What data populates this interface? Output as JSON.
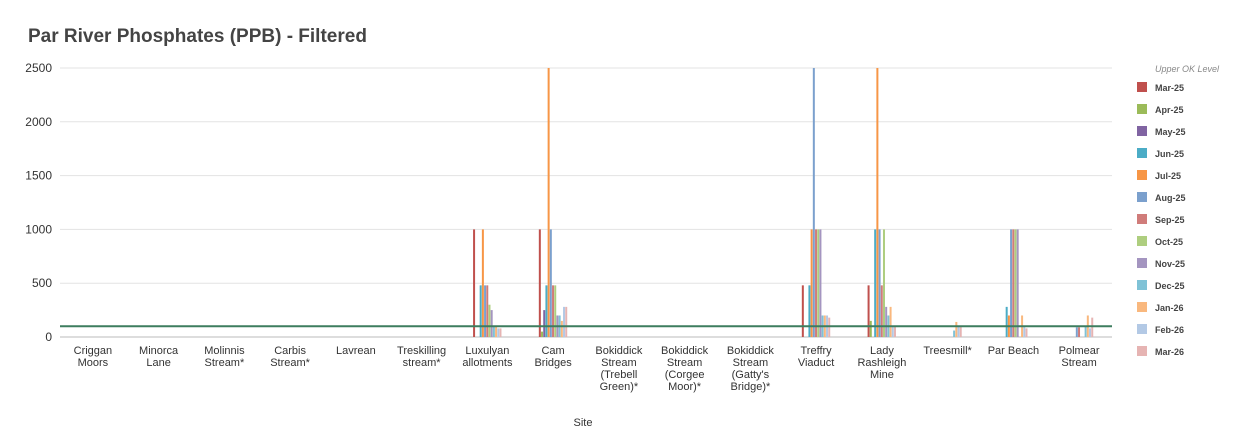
{
  "chart_data": {
    "type": "bar",
    "title": "Par River Phosphates (PPB) - Filtered",
    "xlabel": "Site",
    "ylabel": "",
    "ylim": [
      0,
      2500
    ],
    "yticks": [
      0,
      500,
      1000,
      1500,
      2000,
      2500
    ],
    "grid": true,
    "legend_position": "right",
    "upper_ok_level": 100,
    "upper_ok_label": "Upper OK Level",
    "upper_ok_color": "#3d7d5f",
    "categories": [
      [
        "Criggan",
        "Moors"
      ],
      [
        "Minorca",
        "Lane"
      ],
      [
        "Molinnis",
        "Stream*"
      ],
      [
        "Carbis",
        "Stream*"
      ],
      [
        "Lavrean"
      ],
      [
        "Treskilling",
        "stream*"
      ],
      [
        "Luxulyan",
        "allotments"
      ],
      [
        "Cam",
        "Bridges"
      ],
      [
        "Bokiddick",
        "Stream",
        "(Trebell",
        "Green)*"
      ],
      [
        "Bokiddick",
        "Stream",
        "(Corgee",
        "Moor)*"
      ],
      [
        "Bokiddick",
        "Stream",
        "(Gatty's",
        "Bridge)*"
      ],
      [
        "Treffry",
        "Viaduct"
      ],
      [
        "Lady",
        "Rashleigh",
        "Mine"
      ],
      [
        "Treesmill*"
      ],
      [
        "Par Beach"
      ],
      [
        "Polmear",
        "Stream"
      ]
    ],
    "series": [
      {
        "name": "Mar-25",
        "color": "#c0504d",
        "values": [
          0,
          0,
          0,
          0,
          0,
          0,
          1000,
          1000,
          0,
          0,
          0,
          480,
          480,
          0,
          0,
          0
        ]
      },
      {
        "name": "Apr-25",
        "color": "#9bbb59",
        "values": [
          0,
          0,
          0,
          0,
          0,
          0,
          0,
          50,
          0,
          0,
          0,
          0,
          150,
          0,
          0,
          0
        ]
      },
      {
        "name": "May-25",
        "color": "#8064a2",
        "values": [
          0,
          0,
          0,
          0,
          0,
          0,
          0,
          250,
          0,
          0,
          0,
          0,
          0,
          0,
          0,
          0
        ]
      },
      {
        "name": "Jun-25",
        "color": "#4bacc6",
        "values": [
          0,
          0,
          0,
          0,
          0,
          0,
          480,
          480,
          0,
          0,
          0,
          480,
          1000,
          0,
          280,
          0
        ]
      },
      {
        "name": "Jul-25",
        "color": "#f79646",
        "values": [
          0,
          0,
          0,
          0,
          0,
          0,
          1000,
          2500,
          0,
          0,
          0,
          1000,
          2500,
          0,
          200,
          0
        ]
      },
      {
        "name": "Aug-25",
        "color": "#7ba0cd",
        "values": [
          0,
          0,
          0,
          0,
          0,
          0,
          480,
          1000,
          0,
          0,
          0,
          2500,
          1000,
          0,
          1000,
          90
        ]
      },
      {
        "name": "Sep-25",
        "color": "#d07c7a",
        "values": [
          0,
          0,
          0,
          0,
          0,
          0,
          480,
          480,
          0,
          0,
          0,
          1000,
          480,
          0,
          1000,
          90
        ]
      },
      {
        "name": "Oct-25",
        "color": "#aece7f",
        "values": [
          0,
          0,
          0,
          0,
          0,
          0,
          300,
          480,
          0,
          0,
          0,
          1000,
          1000,
          0,
          1000,
          0
        ]
      },
      {
        "name": "Nov-25",
        "color": "#a495c0",
        "values": [
          0,
          0,
          0,
          0,
          0,
          0,
          250,
          200,
          0,
          0,
          0,
          1000,
          280,
          0,
          1000,
          0
        ]
      },
      {
        "name": "Dec-25",
        "color": "#7fc2d6",
        "values": [
          0,
          0,
          0,
          0,
          0,
          0,
          100,
          200,
          0,
          0,
          0,
          200,
          200,
          60,
          0,
          100
        ]
      },
      {
        "name": "Jan-26",
        "color": "#f9b87e",
        "values": [
          0,
          0,
          0,
          0,
          0,
          0,
          100,
          150,
          0,
          0,
          0,
          200,
          280,
          140,
          200,
          200
        ]
      },
      {
        "name": "Feb-26",
        "color": "#b3c9e5",
        "values": [
          0,
          0,
          0,
          0,
          0,
          0,
          80,
          280,
          0,
          0,
          0,
          200,
          100,
          100,
          100,
          80
        ]
      },
      {
        "name": "Mar-26",
        "color": "#e6b4b3",
        "values": [
          0,
          0,
          0,
          0,
          0,
          0,
          80,
          280,
          0,
          0,
          0,
          180,
          100,
          100,
          80,
          180
        ]
      }
    ]
  }
}
